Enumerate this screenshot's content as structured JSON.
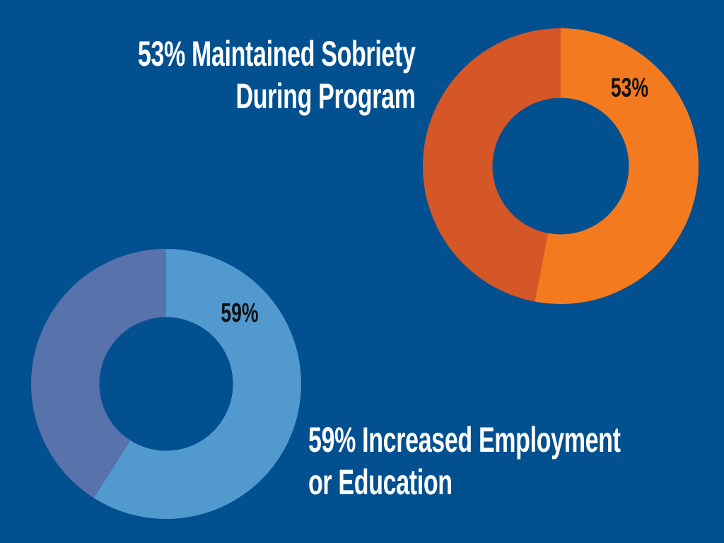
{
  "slide": {
    "background": "#02508f",
    "text_color": "#ffffff"
  },
  "chart_data": [
    {
      "type": "donut",
      "title": [
        "53% Maintained Sobriety",
        "During Program"
      ],
      "slices": [
        {
          "value": 53,
          "label": "53%",
          "color": "#f47a1f"
        },
        {
          "value": 47,
          "label": "",
          "color": "#d55627"
        }
      ],
      "label_color": "#111111"
    },
    {
      "type": "donut",
      "title": [
        "59% Increased Employment",
        "or Education"
      ],
      "slices": [
        {
          "value": 59,
          "label": "59%",
          "color": "#5199cf"
        },
        {
          "value": 41,
          "label": "",
          "color": "#5872ab"
        }
      ],
      "label_color": "#111111"
    }
  ]
}
